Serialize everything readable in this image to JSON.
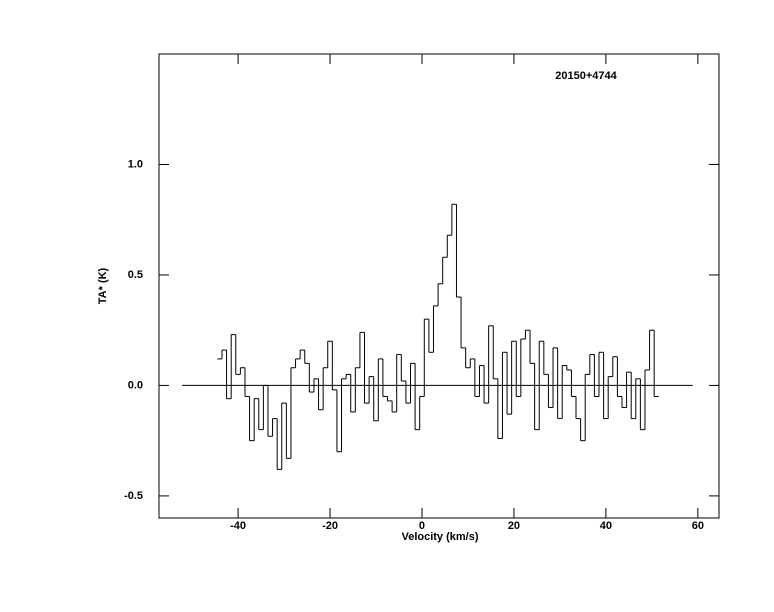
{
  "chart_data": {
    "type": "step",
    "title": "20150+4744",
    "xlabel": "Velocity (km/s)",
    "ylabel": "TA* (K)",
    "x": [
      -44,
      -43,
      -42,
      -41,
      -40,
      -39,
      -38,
      -37,
      -36,
      -35,
      -34,
      -33,
      -32,
      -31,
      -30,
      -29,
      -28,
      -27,
      -26,
      -25,
      -24,
      -23,
      -22,
      -21,
      -20,
      -19,
      -18,
      -17,
      -16,
      -15,
      -14,
      -13,
      -12,
      -11,
      -10,
      -9,
      -8,
      -7,
      -6,
      -5,
      -4,
      -3,
      -2,
      -1,
      0,
      1,
      2,
      3,
      4,
      5,
      6,
      7,
      8,
      9,
      10,
      11,
      12,
      13,
      14,
      15,
      16,
      17,
      18,
      19,
      20,
      21,
      22,
      23,
      24,
      25,
      26,
      27,
      28,
      29,
      30,
      31,
      32,
      33,
      34,
      35,
      36,
      37,
      38,
      39,
      40,
      41,
      42,
      43,
      44,
      45,
      46,
      47,
      48,
      49,
      50,
      51
    ],
    "values": [
      0.12,
      0.16,
      -0.06,
      0.23,
      0.05,
      0.08,
      -0.05,
      -0.25,
      -0.06,
      -0.2,
      0.0,
      -0.23,
      -0.15,
      -0.38,
      -0.08,
      -0.33,
      0.08,
      0.12,
      0.16,
      0.1,
      -0.03,
      0.03,
      -0.11,
      0.08,
      0.2,
      -0.02,
      -0.3,
      0.03,
      0.05,
      -0.12,
      0.08,
      0.24,
      -0.08,
      0.04,
      -0.16,
      0.12,
      -0.05,
      -0.07,
      -0.12,
      0.14,
      0.02,
      -0.08,
      0.1,
      -0.2,
      -0.05,
      0.3,
      0.15,
      0.36,
      0.46,
      0.58,
      0.68,
      0.82,
      0.4,
      0.17,
      0.08,
      0.12,
      -0.05,
      0.09,
      -0.08,
      0.27,
      0.03,
      -0.24,
      0.15,
      -0.13,
      0.2,
      -0.05,
      0.21,
      0.25,
      0.1,
      -0.2,
      0.2,
      0.05,
      -0.1,
      0.17,
      -0.15,
      0.09,
      0.07,
      -0.05,
      -0.15,
      -0.25,
      0.05,
      0.14,
      -0.05,
      0.15,
      -0.15,
      0.04,
      0.13,
      -0.05,
      -0.1,
      0.06,
      -0.15,
      0.03,
      -0.2,
      0.07,
      0.25,
      -0.05
    ],
    "color": "#000000",
    "baseline": {
      "y": 0,
      "xlim": [
        -52.2,
        58.9
      ]
    },
    "xlim": [
      -57.2,
      64.6
    ],
    "ylim": [
      -0.6,
      1.5
    ],
    "xticks": [
      -40,
      -20,
      0,
      20,
      40,
      60
    ],
    "yticks": [
      {
        "value": -0.5,
        "label": "-0.5"
      },
      {
        "value": 0,
        "label": "0.0"
      },
      {
        "value": 0.5,
        "label": "0.5"
      },
      {
        "value": 1,
        "label": "1.0"
      }
    ]
  }
}
